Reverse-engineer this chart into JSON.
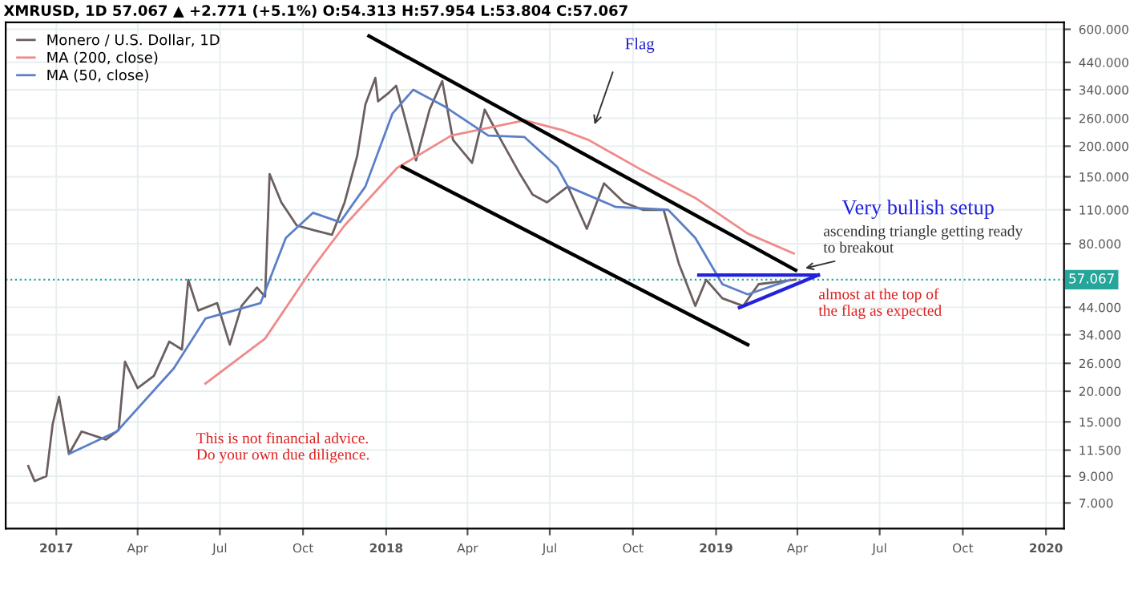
{
  "chart_data": {
    "type": "line",
    "title": "XMRUSD, 1D 57.067 ▲ +2.771 (+5.1%) O:54.313 H:57.954 L:53.804 C:57.067",
    "log": "y",
    "grid": true,
    "legend": "top left",
    "line_style": "solid",
    "marker": "none",
    "xlim": [
      "2016-11-06",
      "2020-01-21"
    ],
    "ylim": [
      5.5,
      640
    ],
    "xticks": [
      {
        "value": "2017-01-01",
        "label": "2017"
      },
      {
        "value": "2017-04-01",
        "label": "Apr"
      },
      {
        "value": "2017-07-01",
        "label": "Jul"
      },
      {
        "value": "2017-10-01",
        "label": "Oct"
      },
      {
        "value": "2018-01-01",
        "label": "2018"
      },
      {
        "value": "2018-04-01",
        "label": "Apr"
      },
      {
        "value": "2018-07-01",
        "label": "Jul"
      },
      {
        "value": "2018-10-01",
        "label": "Oct"
      },
      {
        "value": "2019-01-01",
        "label": "2019"
      },
      {
        "value": "2019-04-01",
        "label": "Apr"
      },
      {
        "value": "2019-07-01",
        "label": "Jul"
      },
      {
        "value": "2019-10-01",
        "label": "Oct"
      },
      {
        "value": "2020-01-01",
        "label": "2020"
      }
    ],
    "yticks": [
      {
        "value": 7,
        "label": "7.000"
      },
      {
        "value": 9,
        "label": "9.000"
      },
      {
        "value": 11.5,
        "label": "11.500"
      },
      {
        "value": 15,
        "label": "15.000"
      },
      {
        "value": 20,
        "label": "20.000"
      },
      {
        "value": 26,
        "label": "26.000"
      },
      {
        "value": 34,
        "label": "34.000"
      },
      {
        "value": 44,
        "label": "44.000"
      },
      {
        "value": 80,
        "label": "80.000"
      },
      {
        "value": 110,
        "label": "110.000"
      },
      {
        "value": 150,
        "label": "150.000"
      },
      {
        "value": 200,
        "label": "200.000"
      },
      {
        "value": 260,
        "label": "260.000"
      },
      {
        "value": 340,
        "label": "340.000"
      },
      {
        "value": 440,
        "label": "440.000"
      },
      {
        "value": 600,
        "label": "600.000"
      }
    ],
    "ref_lines": [
      {
        "axis": "y",
        "value": 57.067,
        "label": "57.067",
        "color": "#26a69a",
        "line_style": "dotted"
      }
    ],
    "series": [
      {
        "name": "Monero / U.S. Dollar, 1D",
        "color": "#6b5f5f",
        "x": [
          "2016-12-01",
          "2016-12-08",
          "2016-12-21",
          "2016-12-28",
          "2017-01-04",
          "2017-01-15",
          "2017-01-29",
          "2017-02-25",
          "2017-03-11",
          "2017-03-18",
          "2017-04-01",
          "2017-04-19",
          "2017-05-06",
          "2017-05-20",
          "2017-05-27",
          "2017-06-07",
          "2017-06-28",
          "2017-07-12",
          "2017-07-25",
          "2017-08-11",
          "2017-08-20",
          "2017-08-25",
          "2017-09-07",
          "2017-09-24",
          "2017-10-12",
          "2017-11-02",
          "2017-11-16",
          "2017-11-30",
          "2017-12-09",
          "2017-12-20",
          "2017-12-23",
          "2018-01-03",
          "2018-01-12",
          "2018-01-20",
          "2018-02-03",
          "2018-02-18",
          "2018-03-04",
          "2018-03-16",
          "2018-04-06",
          "2018-04-20",
          "2018-05-08",
          "2018-05-29",
          "2018-06-12",
          "2018-06-28",
          "2018-07-21",
          "2018-08-11",
          "2018-08-30",
          "2018-09-21",
          "2018-10-12",
          "2018-11-04",
          "2018-11-21",
          "2018-12-09",
          "2018-12-21",
          "2019-01-08",
          "2019-01-31",
          "2019-02-17",
          "2019-03-12",
          "2019-03-30"
        ],
        "values": [
          9.9,
          8.6,
          9.0,
          14.7,
          19,
          11.1,
          13.7,
          12.7,
          13.9,
          26.4,
          20.6,
          23.1,
          31.9,
          29.6,
          57,
          42.7,
          45.8,
          31,
          44.6,
          53,
          48.6,
          154,
          118,
          95,
          91,
          87,
          118,
          183,
          296,
          380,
          305,
          328,
          353,
          275,
          175,
          282,
          369,
          212,
          171,
          282,
          212,
          154,
          127,
          118,
          137,
          92,
          141,
          118,
          110,
          110,
          66,
          44.6,
          57,
          47.9,
          44.6,
          54.7,
          56,
          57.067
        ]
      },
      {
        "name": "MA (200, close)",
        "color": "#f08a8a",
        "x": [
          "2017-06-15",
          "2017-08-20",
          "2017-10-12",
          "2017-11-16",
          "2018-01-13",
          "2018-03-14",
          "2018-06-03",
          "2018-07-16",
          "2018-08-13",
          "2018-10-12",
          "2018-12-09",
          "2019-02-05",
          "2019-03-28"
        ],
        "values": [
          21.5,
          32.8,
          64,
          95,
          163,
          221,
          255,
          232,
          212,
          159,
          123,
          88,
          73
        ]
      },
      {
        "name": "MA (50, close)",
        "color": "#5b7fc7",
        "x": [
          "2017-01-15",
          "2017-03-09",
          "2017-05-11",
          "2017-06-15",
          "2017-08-15",
          "2017-09-12",
          "2017-10-12",
          "2017-11-11",
          "2017-12-09",
          "2018-01-08",
          "2018-01-31",
          "2018-03-07",
          "2018-04-24",
          "2018-06-03",
          "2018-07-09",
          "2018-07-21",
          "2018-09-12",
          "2018-11-09",
          "2018-12-09",
          "2019-01-08",
          "2019-02-05",
          "2019-03-24"
        ],
        "values": [
          11.1,
          13.7,
          24.8,
          39.6,
          45.8,
          84.5,
          107,
          98,
          137,
          272,
          340,
          290,
          221,
          218,
          165,
          137,
          113,
          110,
          84.5,
          54.7,
          49.7,
          57
        ]
      },
      {
        "color": "#000000",
        "x": [
          "2017-12-13",
          "2019-03-30"
        ],
        "values": [
          563,
          62.4
        ]
      },
      {
        "color": "#000000",
        "x": [
          "2018-01-19",
          "2019-02-05"
        ],
        "values": [
          165,
          31
        ]
      },
      {
        "color": "#2222dd",
        "x": [
          "2018-12-13",
          "2019-04-24"
        ],
        "values": [
          59.6,
          59.6
        ]
      },
      {
        "color": "#2222dd",
        "x": [
          "2019-01-27",
          "2019-04-24"
        ],
        "values": [
          43.9,
          59.6
        ]
      }
    ],
    "annotations": [
      "Flag",
      "Very bullish setup",
      {
        "text": "ascending triangle getting ready\nto breakout",
        "x": "2019-04-05",
        "y": 63
      },
      "almost at the top of\nthe flag as expected",
      "This is not financial advice.\nDo your own due diligence."
    ]
  }
}
